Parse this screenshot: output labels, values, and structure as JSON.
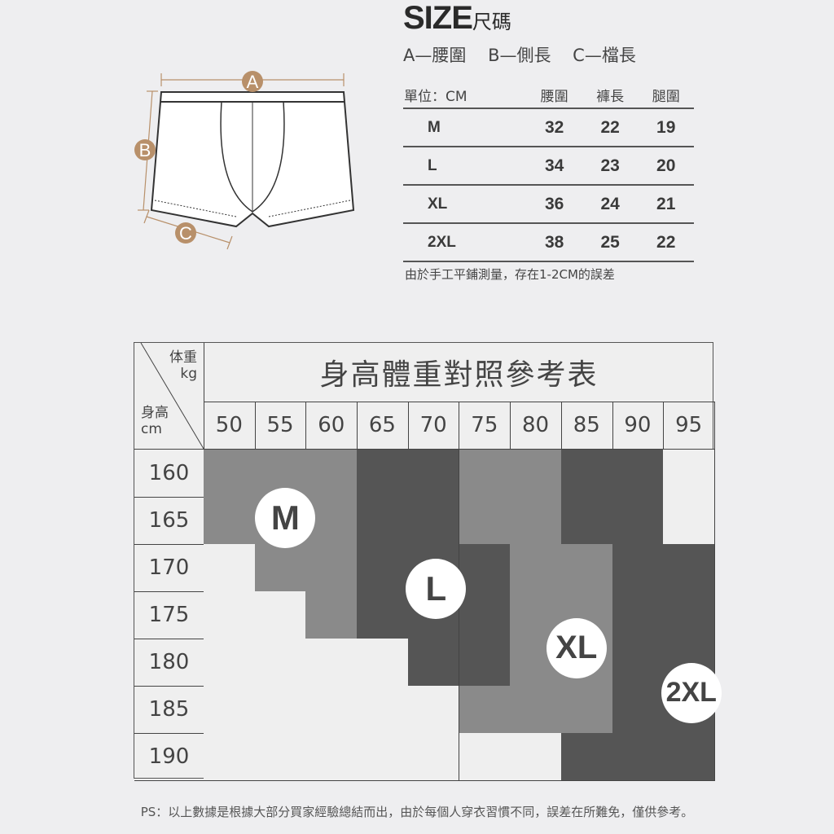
{
  "header": {
    "title": "SIZE",
    "title_suffix": "尺碼",
    "legend": [
      "A—腰圍",
      "B—側長",
      "C—檔長"
    ]
  },
  "diagram": {
    "labels": [
      "A",
      "B",
      "C"
    ],
    "accent": "#b8906a"
  },
  "size_table": {
    "headers": [
      "單位：CM",
      "腰圍",
      "褲長",
      "腿圍"
    ],
    "rows": [
      [
        "M",
        "32",
        "22",
        "19"
      ],
      [
        "L",
        "34",
        "23",
        "20"
      ],
      [
        "XL",
        "36",
        "24",
        "21"
      ],
      [
        "2XL",
        "38",
        "25",
        "22"
      ]
    ],
    "note": "由於手工平鋪測量，存在1-2CM的誤差"
  },
  "grid": {
    "title": "身高體重對照參考表",
    "corner_top": "体重",
    "corner_top_unit": "kg",
    "corner_bottom": "身高",
    "corner_bottom_unit": "cm",
    "weights": [
      "50",
      "55",
      "60",
      "65",
      "70",
      "75",
      "80",
      "85",
      "90",
      "95"
    ],
    "heights": [
      "160",
      "165",
      "170",
      "175",
      "180",
      "185",
      "190"
    ],
    "colors": {
      "light": "#efefef",
      "medium": "#8a8a8a",
      "dark": "#555555"
    },
    "cells": [
      [
        "medium",
        "medium",
        "medium",
        "dark",
        "dark",
        "medium",
        "medium",
        "dark",
        "dark",
        "light"
      ],
      [
        "medium",
        "medium",
        "medium",
        "dark",
        "dark",
        "medium",
        "medium",
        "dark",
        "dark",
        "light"
      ],
      [
        "light",
        "medium",
        "medium",
        "dark",
        "dark",
        "dark",
        "medium",
        "medium",
        "dark",
        "dark"
      ],
      [
        "light",
        "light",
        "medium",
        "dark",
        "dark",
        "dark",
        "medium",
        "medium",
        "dark",
        "dark"
      ],
      [
        "light",
        "light",
        "light",
        "light",
        "dark",
        "dark",
        "medium",
        "medium",
        "dark",
        "dark"
      ],
      [
        "light",
        "light",
        "light",
        "light",
        "light",
        "medium",
        "medium",
        "medium",
        "dark",
        "dark"
      ],
      [
        "light",
        "light",
        "light",
        "light",
        "light",
        "light",
        "light",
        "dark",
        "dark",
        "dark"
      ]
    ],
    "badges": [
      "M",
      "L",
      "XL",
      "2XL"
    ]
  },
  "footer": "PS：以上數據是根據大部分買家經驗總結而出，由於每個人穿衣習慣不同，誤差在所難免，僅供參考。"
}
